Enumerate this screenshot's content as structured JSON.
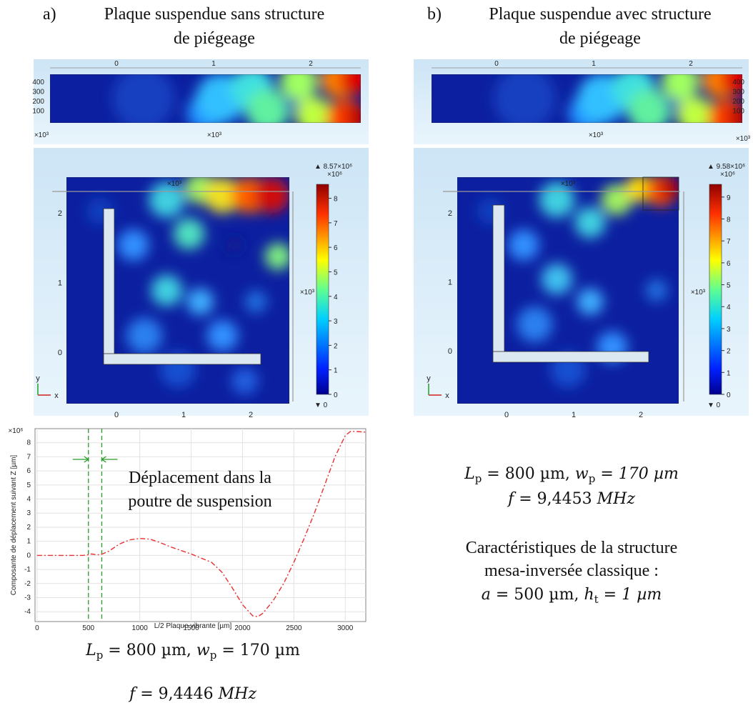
{
  "panel_a": {
    "label": "a)",
    "title": [
      "Plaque suspendue sans structure",
      "de piégeage"
    ],
    "strip": {
      "xticks": [
        0,
        1,
        2
      ],
      "yticks": [
        100,
        200,
        300,
        400
      ],
      "multiplier": "×10³"
    },
    "map": {
      "xticks": [
        0,
        1,
        2
      ],
      "yticks": [
        0,
        1,
        2
      ],
      "multiplier": "×10³",
      "axis_x": "x",
      "axis_y": "y",
      "colorbar": {
        "min": {
          "value": 0,
          "label": "▼ 0"
        },
        "max": {
          "value": 8.57,
          "label": "▲ 8.57×10⁶"
        },
        "unit": "×10⁶",
        "ticks": [
          0,
          1,
          2,
          3,
          4,
          5,
          6,
          7,
          8
        ]
      }
    },
    "equation": [
      {
        "t": "L",
        "i": true
      },
      {
        "t": "p",
        "sub": true
      },
      {
        "t": " = 800 µm, "
      },
      {
        "t": "w",
        "i": true
      },
      {
        "t": "p",
        "sub": true
      },
      {
        "t": " = 170 µm"
      }
    ],
    "frequency": [
      {
        "t": "f",
        "i": true
      },
      {
        "t": " = 9,4446 "
      },
      {
        "t": "MHz",
        "i": true
      }
    ]
  },
  "panel_b": {
    "label": "b)",
    "title": [
      "Plaque suspendue avec structure",
      "de piégeage"
    ],
    "strip": {
      "xticks": [
        0,
        1,
        2
      ],
      "yticks": [
        100,
        200,
        300,
        400
      ],
      "multiplier": "×10³"
    },
    "map": {
      "xticks": [
        0,
        1,
        2
      ],
      "yticks": [
        0,
        1,
        2
      ],
      "multiplier": "×10³",
      "axis_x": "x",
      "axis_y": "y",
      "colorbar": {
        "min": {
          "value": 0,
          "label": "▼ 0"
        },
        "max": {
          "value": 9.58,
          "label": "▲ 9.58×10⁶"
        },
        "unit": "×10⁶",
        "ticks": [
          0,
          1,
          2,
          3,
          4,
          5,
          6,
          7,
          8,
          9
        ]
      }
    },
    "equation": [
      {
        "t": "L",
        "i": true
      },
      {
        "t": "p",
        "sub": true
      },
      {
        "t": " = 800 µm, "
      },
      {
        "t": "w",
        "i": true
      },
      {
        "t": "p",
        "sub": true
      },
      {
        "t": " = 170 µm",
        "i": true
      }
    ],
    "frequency": [
      {
        "t": "f",
        "i": true
      },
      {
        "t": " = 9,4453 "
      },
      {
        "t": "MHz",
        "i": true
      }
    ],
    "notes": [
      "Caractéristiques de la structure",
      "mesa-inversée classique :"
    ],
    "mesa": [
      {
        "t": "a",
        "i": true
      },
      {
        "t": " = 500 µm, "
      },
      {
        "t": "h",
        "i": true
      },
      {
        "t": "t",
        "sub": true
      },
      {
        "t": " = 1 µm",
        "i": true
      }
    ]
  },
  "chart_data": {
    "type": "line",
    "xlabel": "L/2 Plaque vibrante [µm]",
    "ylabel": "Composante de déplacement suivant Z [µm]",
    "y_multiplier": "×10⁶",
    "annotation": [
      "Déplacement dans la",
      "poutre de suspension"
    ],
    "x": [
      0,
      450,
      500,
      530,
      570,
      620,
      700,
      800,
      900,
      1000,
      1100,
      1200,
      1300,
      1400,
      1500,
      1600,
      1700,
      1800,
      1900,
      2000,
      2100,
      2150,
      2200,
      2300,
      2400,
      2500,
      2600,
      2700,
      2800,
      2900,
      3000,
      3050,
      3100,
      3200
    ],
    "values": [
      0,
      0,
      0.05,
      0.1,
      0.05,
      0.05,
      0.3,
      0.8,
      1.1,
      1.2,
      1.15,
      0.9,
      0.6,
      0.35,
      0.1,
      -0.2,
      -0.5,
      -1.2,
      -2.3,
      -3.5,
      -4.3,
      -4.35,
      -4.1,
      -3.2,
      -2.0,
      -0.5,
      1.2,
      3.0,
      5.0,
      7.0,
      8.5,
      8.8,
      8.8,
      8.75
    ],
    "color": "#e83030",
    "line_style": "dashdot",
    "markers_x": [
      500,
      630
    ],
    "marker_color": "#2a9a2a",
    "xlim": [
      -20,
      3200
    ],
    "ylim": [
      -4.7,
      9
    ],
    "xticks": [
      0,
      500,
      1000,
      1500,
      2000,
      2500,
      3000
    ],
    "yticks": [
      -4,
      -3,
      -2,
      -1,
      0,
      1,
      2,
      3,
      4,
      5,
      6,
      7,
      8
    ],
    "grid": true
  }
}
